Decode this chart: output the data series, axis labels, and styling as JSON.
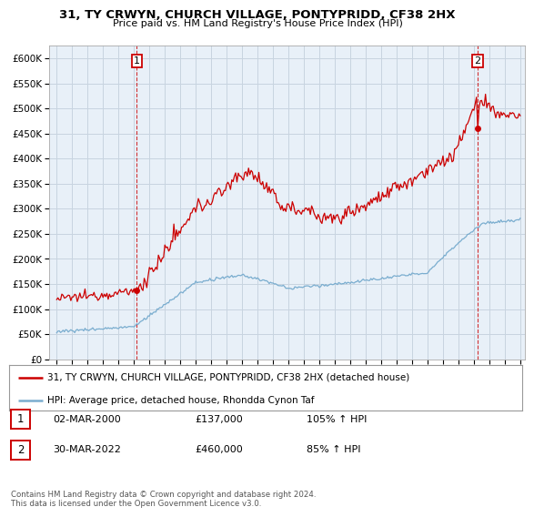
{
  "title": "31, TY CRWYN, CHURCH VILLAGE, PONTYPRIDD, CF38 2HX",
  "subtitle": "Price paid vs. HM Land Registry's House Price Index (HPI)",
  "ylabel_values": [
    0,
    50000,
    100000,
    150000,
    200000,
    250000,
    300000,
    350000,
    400000,
    450000,
    500000,
    550000,
    600000
  ],
  "ylim": [
    0,
    625000
  ],
  "xlim_start": 1994.5,
  "xlim_end": 2025.3,
  "point1_x": 2000.17,
  "point1_y": 137000,
  "point2_x": 2022.24,
  "point2_y": 460000,
  "red_color": "#cc0000",
  "blue_color": "#7aadcf",
  "plot_bg_color": "#e8f0f8",
  "legend_line1": "31, TY CRWYN, CHURCH VILLAGE, PONTYPRIDD, CF38 2HX (detached house)",
  "legend_line2": "HPI: Average price, detached house, Rhondda Cynon Taf",
  "annot1_date": "02-MAR-2000",
  "annot1_price": "£137,000",
  "annot1_hpi": "105% ↑ HPI",
  "annot2_date": "30-MAR-2022",
  "annot2_price": "£460,000",
  "annot2_hpi": "85% ↑ HPI",
  "footer": "Contains HM Land Registry data © Crown copyright and database right 2024.\nThis data is licensed under the Open Government Licence v3.0.",
  "background_color": "#ffffff",
  "grid_color": "#c8d4e0"
}
